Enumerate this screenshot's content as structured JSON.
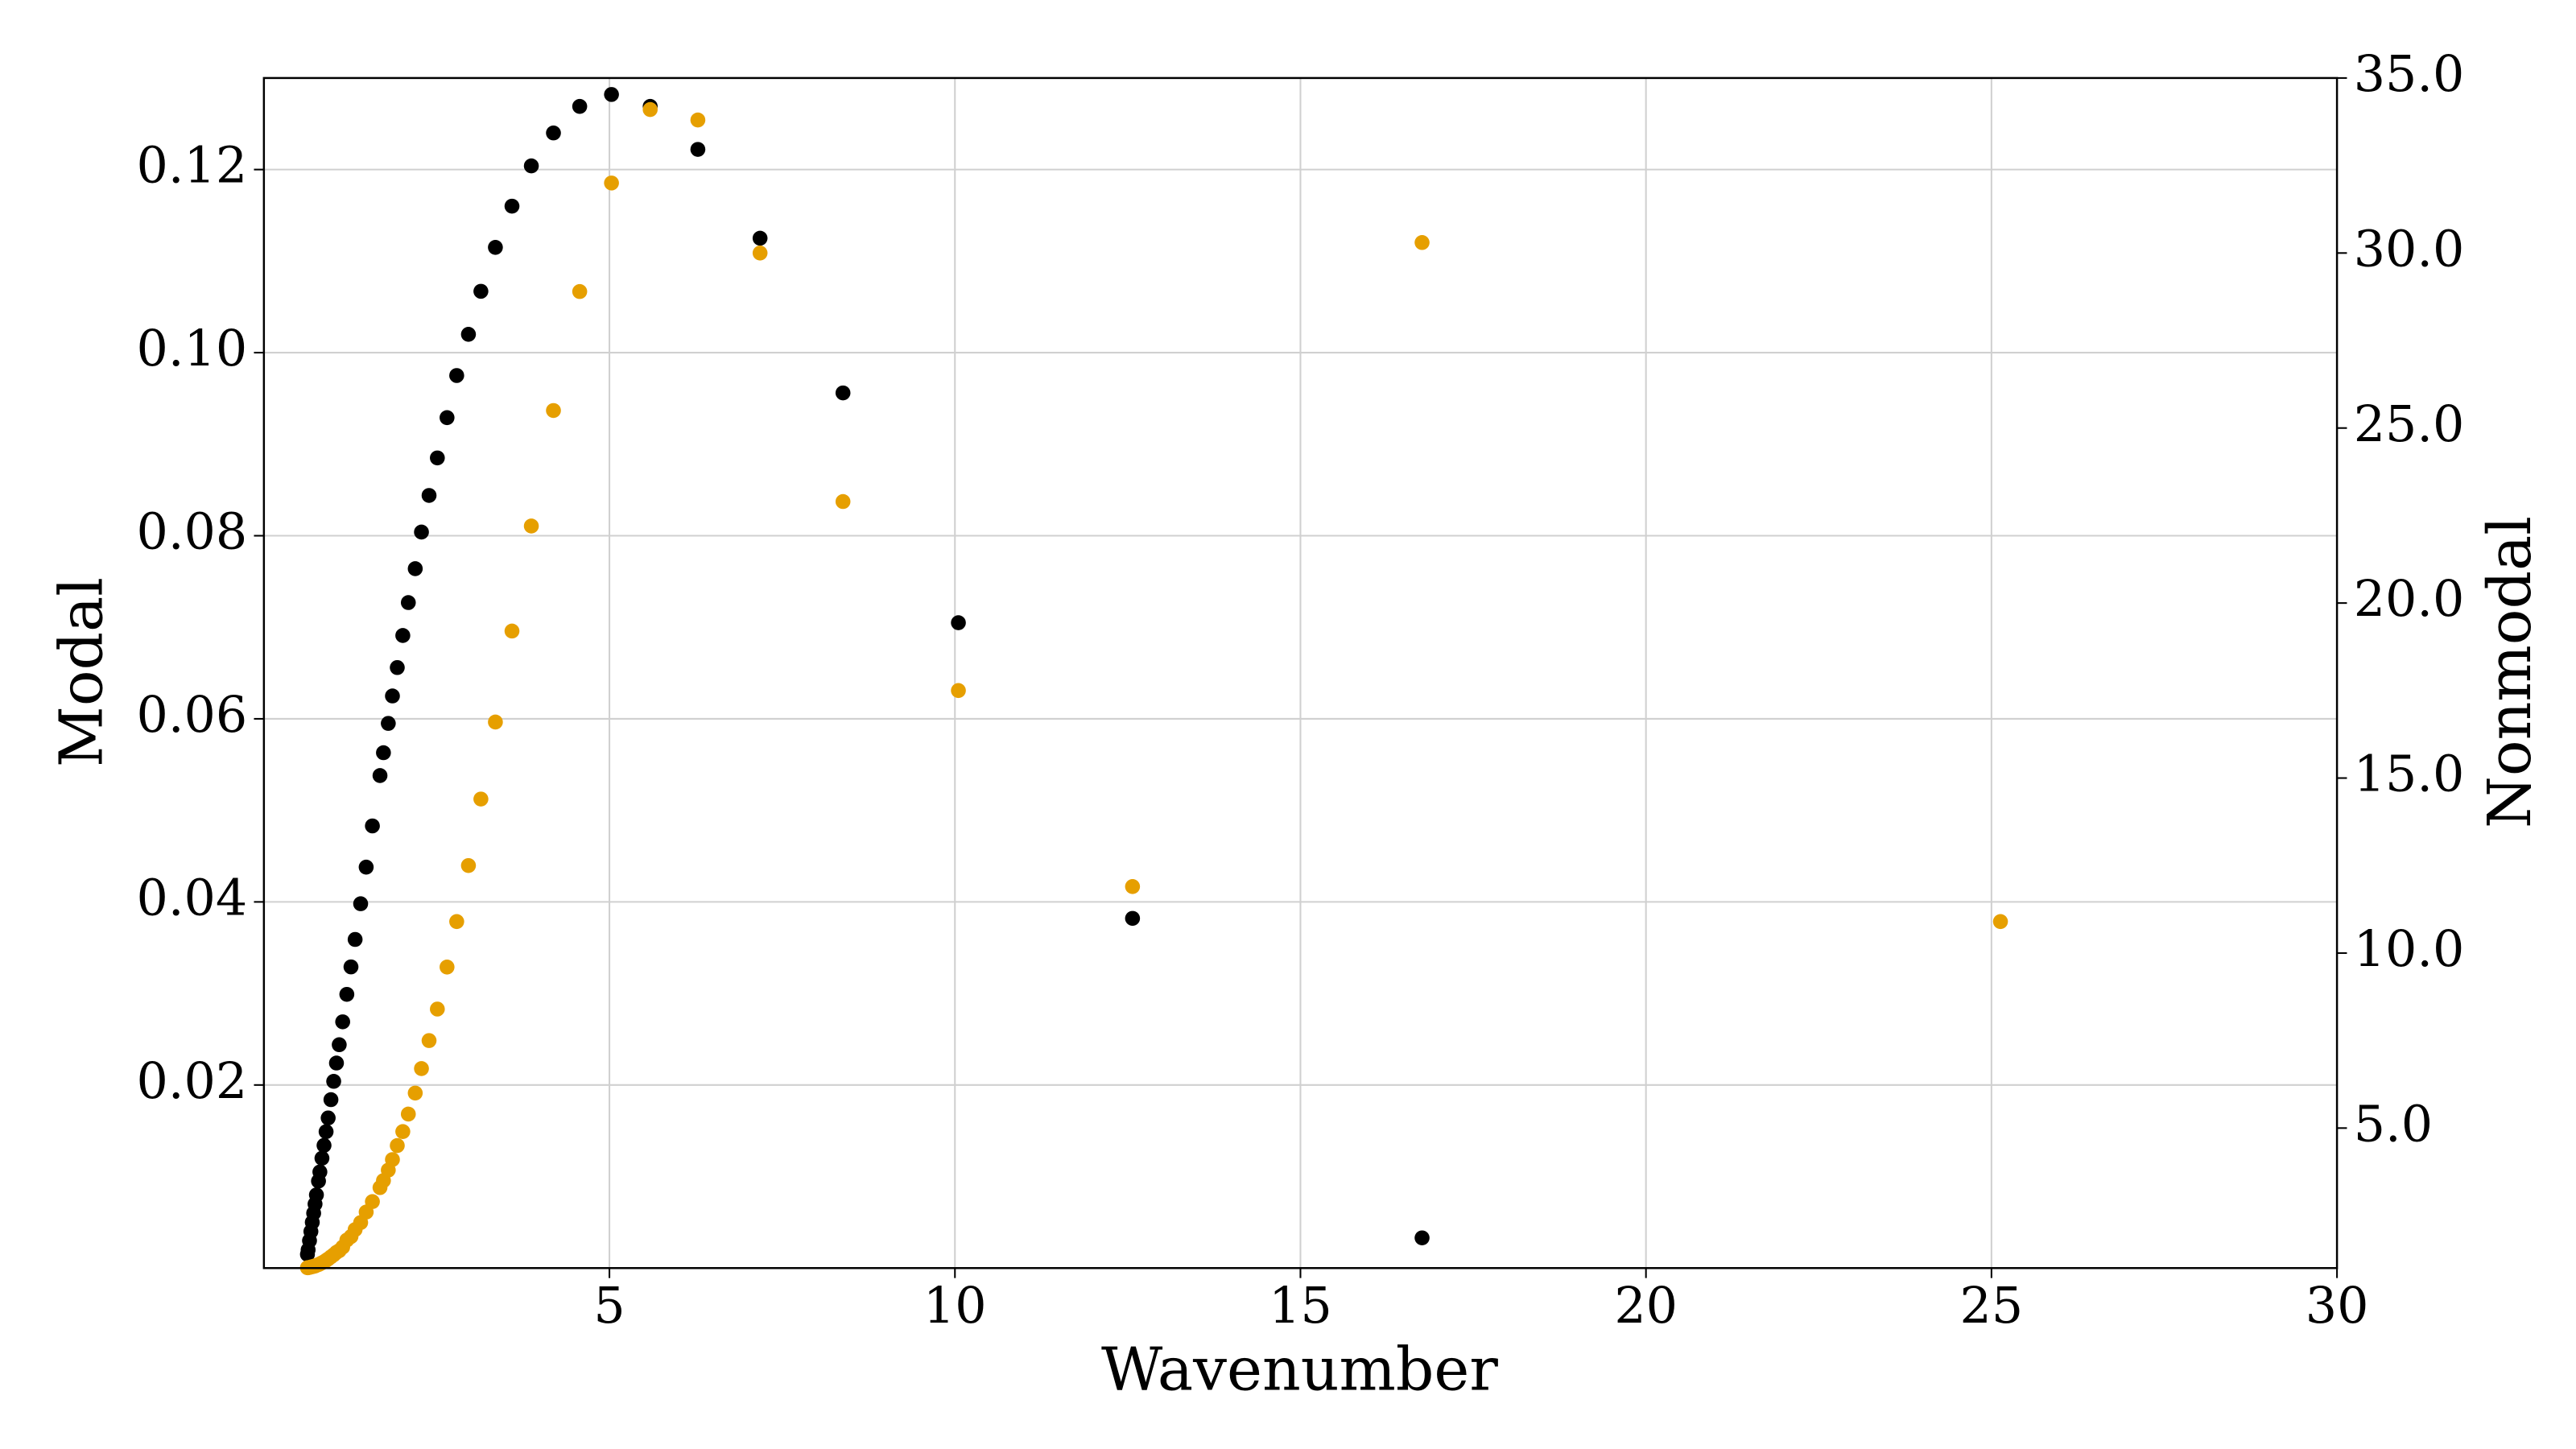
{
  "chart_data": {
    "type": "scatter",
    "x_label": "Wavenumber",
    "y_label": "Modal",
    "y2_label": "Nonmodal",
    "x": [
      25.13,
      16.76,
      12.57,
      10.05,
      8.38,
      7.18,
      6.28,
      5.59,
      5.03,
      4.57,
      4.19,
      3.87,
      3.59,
      3.35,
      3.14,
      2.96,
      2.79,
      2.65,
      2.51,
      2.39,
      2.28,
      2.19,
      2.09,
      2.01,
      1.93,
      1.86,
      1.8,
      1.73,
      1.68,
      1.57,
      1.48,
      1.4,
      1.32,
      1.26,
      1.2,
      1.14,
      1.09,
      1.05,
      1.01,
      0.97,
      0.93,
      0.9,
      0.87,
      0.84,
      0.81,
      0.79,
      0.76,
      0.74,
      0.72,
      0.7,
      0.68,
      0.66,
      0.64,
      0.63
    ],
    "series": [
      {
        "color": "#000000",
        "axis": "y",
        "values": [
          null,
          0.0033,
          0.0382,
          0.0705,
          0.0956,
          0.1125,
          0.1222,
          0.1269,
          0.1282,
          0.1269,
          0.124,
          0.1204,
          0.116,
          0.1115,
          0.1067,
          0.102,
          0.0975,
          0.0929,
          0.0885,
          0.0844,
          0.0804,
          0.0764,
          0.0727,
          0.0691,
          0.0656,
          0.0625,
          0.0595,
          0.0563,
          0.0538,
          0.0483,
          0.0438,
          0.0398,
          0.0359,
          0.0329,
          0.0299,
          0.0269,
          0.0244,
          0.0224,
          0.0204,
          0.0184,
          0.0164,
          0.0149,
          0.0134,
          0.012,
          0.0105,
          0.0095,
          0.008,
          0.007,
          0.006,
          0.005,
          0.004,
          0.003,
          0.002,
          0.0015
        ]
      },
      {
        "color": "#e69f00",
        "axis": "y2",
        "values": [
          10.9,
          30.3,
          11.9,
          17.5,
          22.9,
          30.0,
          33.8,
          34.1,
          32.0,
          28.9,
          25.5,
          22.2,
          19.2,
          16.6,
          14.4,
          12.5,
          10.9,
          9.6,
          8.4,
          7.5,
          6.7,
          6.0,
          5.4,
          4.9,
          4.5,
          4.1,
          3.8,
          3.5,
          3.3,
          2.9,
          2.6,
          2.3,
          2.1,
          1.9,
          1.8,
          1.6,
          1.5,
          1.45,
          1.38,
          1.32,
          1.26,
          1.22,
          1.18,
          1.15,
          1.12,
          1.1,
          1.08,
          1.06,
          1.05,
          1.04,
          1.03,
          1.02,
          1.01,
          1.01
        ]
      }
    ],
    "xlim": [
      0,
      30
    ],
    "xticks": [
      5,
      10,
      15,
      20,
      25,
      30
    ],
    "ylim": [
      0,
      0.13
    ],
    "yticks": [
      0.02,
      0.04,
      0.06,
      0.08,
      {
        "value": 0.1,
        "label": "0.10"
      },
      0.12
    ],
    "y2lim": [
      1.0,
      35.0
    ],
    "y2ticks": [
      {
        "value": 5,
        "label": "5.0"
      },
      {
        "value": 10,
        "label": "10.0"
      },
      {
        "value": 15,
        "label": "15.0"
      },
      {
        "value": 20,
        "label": "20.0"
      },
      {
        "value": 25,
        "label": "25.0"
      },
      {
        "value": 30,
        "label": "30.0"
      },
      {
        "value": 35,
        "label": "35.0"
      }
    ],
    "grid": true
  }
}
